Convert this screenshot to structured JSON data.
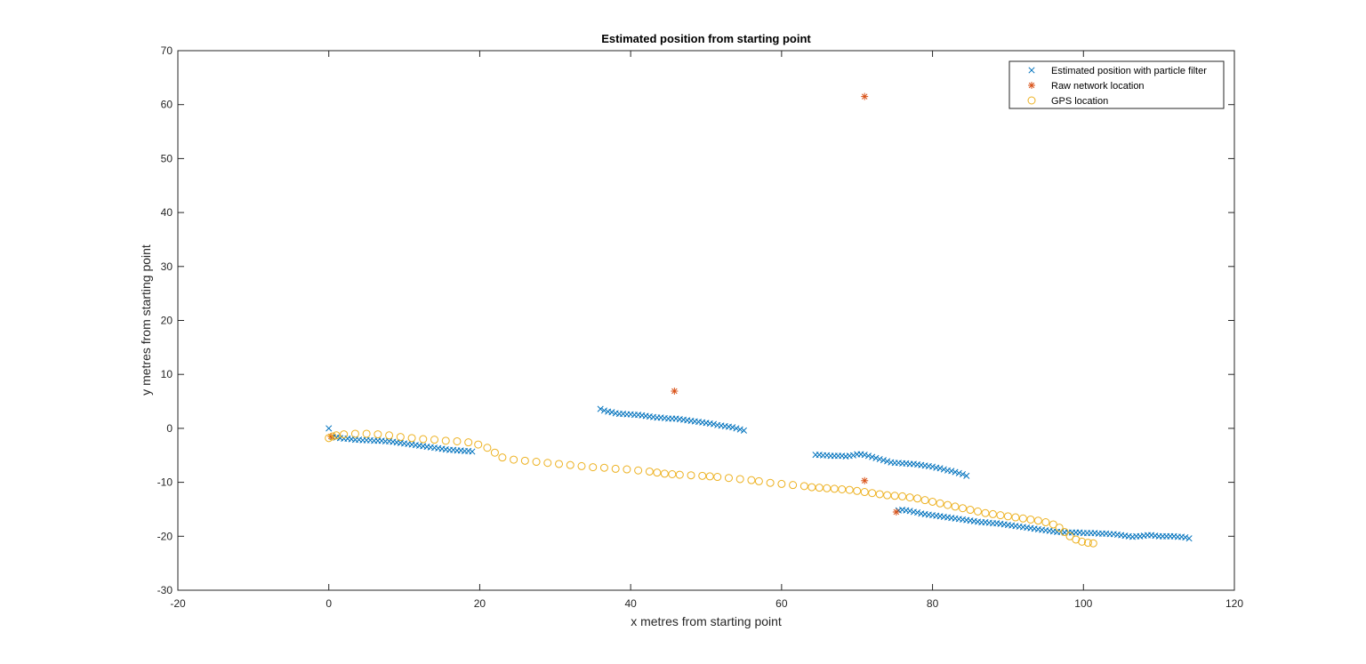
{
  "figure": {
    "title": "Estimated position from starting point",
    "xlabel": "x metres from starting point",
    "ylabel": "y metres from starting point"
  },
  "colors": {
    "estimated": "#0072BD",
    "network": "#D95319",
    "gps": "#EDB120",
    "axis": "#262626"
  },
  "chart_data": {
    "type": "scatter",
    "title": "Estimated position from starting point",
    "xlabel": "x metres from starting point",
    "ylabel": "y metres from starting point",
    "xlim": [
      -20,
      120
    ],
    "ylim": [
      -30,
      70
    ],
    "xticks": [
      -20,
      0,
      20,
      40,
      60,
      80,
      100,
      120
    ],
    "yticks": [
      -30,
      -20,
      -10,
      0,
      10,
      20,
      30,
      40,
      50,
      60,
      70
    ],
    "grid": false,
    "legend_position": "top-right",
    "series": [
      {
        "name": "Estimated position with particle filter",
        "marker": "x",
        "color": "#0072BD",
        "points": [
          [
            0,
            0
          ],
          [
            0.5,
            -1.6
          ],
          [
            1,
            -1.7
          ],
          [
            1.5,
            -1.8
          ],
          [
            2,
            -1.9
          ],
          [
            2.5,
            -1.9
          ],
          [
            3,
            -2.0
          ],
          [
            3.5,
            -2.1
          ],
          [
            4,
            -2.1
          ],
          [
            4.5,
            -2.2
          ],
          [
            5,
            -2.2
          ],
          [
            5.5,
            -2.2
          ],
          [
            6,
            -2.3
          ],
          [
            6.5,
            -2.3
          ],
          [
            7,
            -2.3
          ],
          [
            7.5,
            -2.4
          ],
          [
            8,
            -2.4
          ],
          [
            8.5,
            -2.5
          ],
          [
            9,
            -2.6
          ],
          [
            9.5,
            -2.7
          ],
          [
            10,
            -2.8
          ],
          [
            10.5,
            -2.9
          ],
          [
            11,
            -3.0
          ],
          [
            11.5,
            -3.1
          ],
          [
            12,
            -3.2
          ],
          [
            12.5,
            -3.3
          ],
          [
            13,
            -3.4
          ],
          [
            13.5,
            -3.5
          ],
          [
            14,
            -3.6
          ],
          [
            14.5,
            -3.7
          ],
          [
            15,
            -3.8
          ],
          [
            15.5,
            -3.9
          ],
          [
            16,
            -4.0
          ],
          [
            16.5,
            -4.0
          ],
          [
            17,
            -4.1
          ],
          [
            17.5,
            -4.1
          ],
          [
            18,
            -4.2
          ],
          [
            18.5,
            -4.2
          ],
          [
            19,
            -4.3
          ],
          [
            36,
            3.6
          ],
          [
            36.5,
            3.3
          ],
          [
            37,
            3.1
          ],
          [
            37.5,
            3.0
          ],
          [
            38,
            2.8
          ],
          [
            38.5,
            2.7
          ],
          [
            39,
            2.7
          ],
          [
            39.5,
            2.6
          ],
          [
            40,
            2.6
          ],
          [
            40.5,
            2.5
          ],
          [
            41,
            2.5
          ],
          [
            41.5,
            2.4
          ],
          [
            42,
            2.3
          ],
          [
            42.5,
            2.2
          ],
          [
            43,
            2.1
          ],
          [
            43.5,
            2.0
          ],
          [
            44,
            2.0
          ],
          [
            44.5,
            1.9
          ],
          [
            45,
            1.8
          ],
          [
            45.5,
            1.8
          ],
          [
            46,
            1.8
          ],
          [
            46.5,
            1.7
          ],
          [
            47,
            1.6
          ],
          [
            47.5,
            1.5
          ],
          [
            48,
            1.4
          ],
          [
            48.5,
            1.3
          ],
          [
            49,
            1.2
          ],
          [
            49.5,
            1.1
          ],
          [
            50,
            1.0
          ],
          [
            50.5,
            0.9
          ],
          [
            51,
            0.8
          ],
          [
            51.5,
            0.6
          ],
          [
            52,
            0.5
          ],
          [
            52.5,
            0.4
          ],
          [
            53,
            0.3
          ],
          [
            53.5,
            0.2
          ],
          [
            54,
            0.0
          ],
          [
            54.5,
            -0.2
          ],
          [
            55,
            -0.4
          ],
          [
            64.5,
            -4.9
          ],
          [
            65,
            -4.9
          ],
          [
            65.5,
            -5.0
          ],
          [
            66,
            -5.0
          ],
          [
            66.5,
            -5.1
          ],
          [
            67,
            -5.1
          ],
          [
            67.5,
            -5.1
          ],
          [
            68,
            -5.1
          ],
          [
            68.5,
            -5.2
          ],
          [
            69,
            -5.1
          ],
          [
            69.5,
            -5.0
          ],
          [
            70,
            -4.8
          ],
          [
            70.5,
            -4.8
          ],
          [
            71,
            -4.9
          ],
          [
            71.5,
            -5.1
          ],
          [
            72,
            -5.3
          ],
          [
            72.5,
            -5.5
          ],
          [
            73,
            -5.7
          ],
          [
            73.5,
            -5.9
          ],
          [
            74,
            -6.1
          ],
          [
            74.5,
            -6.3
          ],
          [
            75,
            -6.4
          ],
          [
            75.5,
            -6.4
          ],
          [
            76,
            -6.5
          ],
          [
            76.5,
            -6.5
          ],
          [
            77,
            -6.6
          ],
          [
            77.5,
            -6.6
          ],
          [
            78,
            -6.7
          ],
          [
            78.5,
            -6.8
          ],
          [
            79,
            -6.9
          ],
          [
            79.5,
            -7.0
          ],
          [
            80,
            -7.1
          ],
          [
            80.5,
            -7.3
          ],
          [
            81,
            -7.4
          ],
          [
            81.5,
            -7.6
          ],
          [
            82,
            -7.8
          ],
          [
            82.5,
            -7.9
          ],
          [
            83,
            -8.1
          ],
          [
            83.5,
            -8.3
          ],
          [
            84,
            -8.5
          ],
          [
            84.5,
            -8.8
          ],
          [
            75.5,
            -15.2
          ],
          [
            76,
            -15.1
          ],
          [
            76.5,
            -15.2
          ],
          [
            77,
            -15.3
          ],
          [
            77.5,
            -15.5
          ],
          [
            78,
            -15.6
          ],
          [
            78.5,
            -15.8
          ],
          [
            79,
            -15.9
          ],
          [
            79.5,
            -16.0
          ],
          [
            80,
            -16.1
          ],
          [
            80.5,
            -16.2
          ],
          [
            81,
            -16.3
          ],
          [
            81.5,
            -16.4
          ],
          [
            82,
            -16.5
          ],
          [
            82.5,
            -16.6
          ],
          [
            83,
            -16.7
          ],
          [
            83.5,
            -16.8
          ],
          [
            84,
            -16.9
          ],
          [
            84.5,
            -17.0
          ],
          [
            85,
            -17.1
          ],
          [
            85.5,
            -17.2
          ],
          [
            86,
            -17.3
          ],
          [
            86.5,
            -17.4
          ],
          [
            87,
            -17.4
          ],
          [
            87.5,
            -17.5
          ],
          [
            88,
            -17.6
          ],
          [
            88.5,
            -17.6
          ],
          [
            89,
            -17.7
          ],
          [
            89.5,
            -17.8
          ],
          [
            90,
            -17.9
          ],
          [
            90.5,
            -18.0
          ],
          [
            91,
            -18.1
          ],
          [
            91.5,
            -18.2
          ],
          [
            92,
            -18.3
          ],
          [
            92.5,
            -18.4
          ],
          [
            93,
            -18.5
          ],
          [
            93.5,
            -18.6
          ],
          [
            94,
            -18.7
          ],
          [
            94.5,
            -18.8
          ],
          [
            95,
            -18.9
          ],
          [
            95.5,
            -19.0
          ],
          [
            96,
            -19.1
          ],
          [
            96.5,
            -19.2
          ],
          [
            97,
            -19.2
          ],
          [
            97.5,
            -19.3
          ],
          [
            98,
            -19.3
          ],
          [
            98.5,
            -19.3
          ],
          [
            99,
            -19.3
          ],
          [
            99.5,
            -19.3
          ],
          [
            100,
            -19.4
          ],
          [
            100.5,
            -19.4
          ],
          [
            101,
            -19.4
          ],
          [
            101.5,
            -19.4
          ],
          [
            102,
            -19.5
          ],
          [
            102.5,
            -19.5
          ],
          [
            103,
            -19.5
          ],
          [
            103.5,
            -19.6
          ],
          [
            104,
            -19.6
          ],
          [
            104.5,
            -19.7
          ],
          [
            105,
            -19.8
          ],
          [
            105.5,
            -19.9
          ],
          [
            106,
            -20.0
          ],
          [
            106.5,
            -20.1
          ],
          [
            107,
            -20.0
          ],
          [
            107.5,
            -20.0
          ],
          [
            108,
            -19.9
          ],
          [
            108.5,
            -19.8
          ],
          [
            109,
            -19.8
          ],
          [
            109.5,
            -19.9
          ],
          [
            110,
            -20.0
          ],
          [
            110.5,
            -20.0
          ],
          [
            111,
            -20.0
          ],
          [
            111.5,
            -20.0
          ],
          [
            112,
            -20.0
          ],
          [
            112.5,
            -20.1
          ],
          [
            113,
            -20.1
          ],
          [
            113.5,
            -20.2
          ],
          [
            114,
            -20.4
          ]
        ]
      },
      {
        "name": "Raw network location",
        "marker": "*",
        "color": "#D95319",
        "points": [
          [
            0.3,
            -1.5
          ],
          [
            45.8,
            6.9
          ],
          [
            71,
            61.5
          ],
          [
            71,
            -9.7
          ],
          [
            75.2,
            -15.5
          ]
        ]
      },
      {
        "name": "GPS location",
        "marker": "o",
        "color": "#EDB120",
        "points": [
          [
            0,
            -1.8
          ],
          [
            0.5,
            -1.5
          ],
          [
            1.0,
            -1.3
          ],
          [
            2.0,
            -1.1
          ],
          [
            3.5,
            -1.0
          ],
          [
            5.0,
            -1.0
          ],
          [
            6.5,
            -1.1
          ],
          [
            8.0,
            -1.3
          ],
          [
            9.5,
            -1.6
          ],
          [
            11.0,
            -1.8
          ],
          [
            12.5,
            -2.0
          ],
          [
            14.0,
            -2.1
          ],
          [
            15.5,
            -2.3
          ],
          [
            17.0,
            -2.4
          ],
          [
            18.5,
            -2.6
          ],
          [
            19.8,
            -3.0
          ],
          [
            21.0,
            -3.6
          ],
          [
            22.0,
            -4.5
          ],
          [
            23.0,
            -5.4
          ],
          [
            24.5,
            -5.8
          ],
          [
            26.0,
            -6.0
          ],
          [
            27.5,
            -6.2
          ],
          [
            29.0,
            -6.4
          ],
          [
            30.5,
            -6.6
          ],
          [
            32.0,
            -6.8
          ],
          [
            33.5,
            -7.0
          ],
          [
            35.0,
            -7.2
          ],
          [
            36.5,
            -7.3
          ],
          [
            38.0,
            -7.5
          ],
          [
            39.5,
            -7.6
          ],
          [
            41.0,
            -7.8
          ],
          [
            42.5,
            -8.0
          ],
          [
            43.5,
            -8.2
          ],
          [
            44.5,
            -8.4
          ],
          [
            45.5,
            -8.5
          ],
          [
            46.5,
            -8.6
          ],
          [
            48.0,
            -8.7
          ],
          [
            49.5,
            -8.8
          ],
          [
            50.5,
            -8.9
          ],
          [
            51.5,
            -9.0
          ],
          [
            53.0,
            -9.2
          ],
          [
            54.5,
            -9.4
          ],
          [
            56.0,
            -9.6
          ],
          [
            57.0,
            -9.8
          ],
          [
            58.5,
            -10.1
          ],
          [
            60.0,
            -10.3
          ],
          [
            61.5,
            -10.5
          ],
          [
            63.0,
            -10.7
          ],
          [
            64.0,
            -10.9
          ],
          [
            65.0,
            -11.0
          ],
          [
            66.0,
            -11.1
          ],
          [
            67.0,
            -11.2
          ],
          [
            68.0,
            -11.3
          ],
          [
            69.0,
            -11.4
          ],
          [
            70.0,
            -11.6
          ],
          [
            71.0,
            -11.8
          ],
          [
            72.0,
            -12.0
          ],
          [
            73.0,
            -12.2
          ],
          [
            74.0,
            -12.4
          ],
          [
            75.0,
            -12.5
          ],
          [
            76.0,
            -12.6
          ],
          [
            77.0,
            -12.8
          ],
          [
            78.0,
            -13.0
          ],
          [
            79.0,
            -13.3
          ],
          [
            80.0,
            -13.6
          ],
          [
            81.0,
            -13.9
          ],
          [
            82.0,
            -14.2
          ],
          [
            83.0,
            -14.5
          ],
          [
            84.0,
            -14.8
          ],
          [
            85.0,
            -15.1
          ],
          [
            86.0,
            -15.4
          ],
          [
            87.0,
            -15.7
          ],
          [
            88.0,
            -15.9
          ],
          [
            89.0,
            -16.1
          ],
          [
            90.0,
            -16.3
          ],
          [
            91.0,
            -16.5
          ],
          [
            92.0,
            -16.7
          ],
          [
            93.0,
            -16.9
          ],
          [
            94.0,
            -17.1
          ],
          [
            95.0,
            -17.4
          ],
          [
            96.0,
            -17.8
          ],
          [
            96.8,
            -18.4
          ],
          [
            97.5,
            -19.2
          ],
          [
            98.2,
            -20.0
          ],
          [
            99.0,
            -20.6
          ],
          [
            99.8,
            -21.0
          ],
          [
            100.6,
            -21.2
          ],
          [
            101.3,
            -21.3
          ]
        ]
      }
    ]
  }
}
